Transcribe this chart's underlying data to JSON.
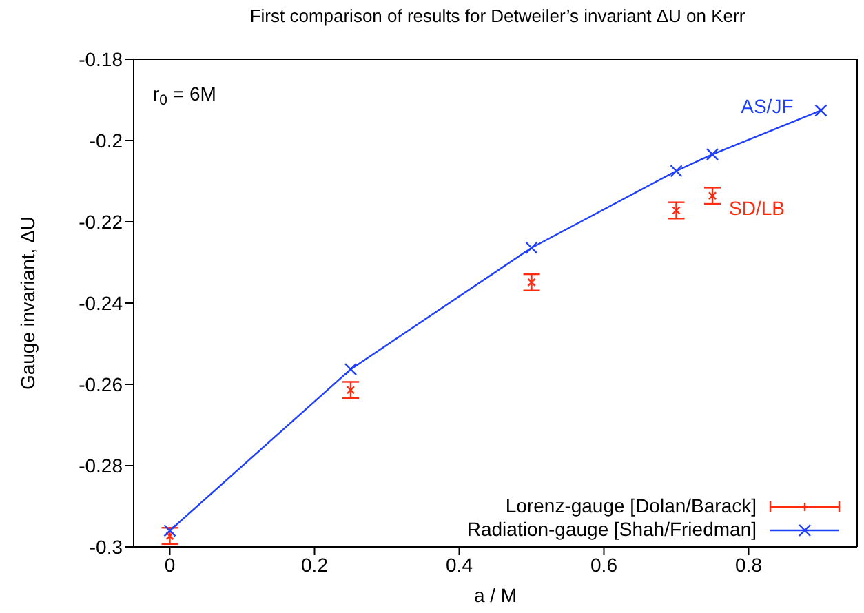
{
  "chart_data": {
    "type": "scatter",
    "title": "First comparison of results for Detweiler’s invariant ΔU on Kerr",
    "xlabel": "a / M",
    "ylabel": "Gauge invariant, ΔU",
    "series": [
      {
        "name": "Lorenz-gauge [Dolan/Barack]",
        "color": "#ff2a10",
        "marker": "cross",
        "x": [
          0,
          0.25,
          0.5,
          0.7,
          0.75
        ],
        "values": [
          -0.2973,
          -0.2614,
          -0.2349,
          -0.2172,
          -0.2136
        ],
        "errors": [
          0.002,
          0.002,
          0.002,
          0.002,
          0.002
        ]
      },
      {
        "name": "Radiation-gauge [Shah/Friedman]",
        "type": "line",
        "color": "#1f3fff",
        "marker": "cross",
        "x": [
          0,
          0.25,
          0.5,
          0.7,
          0.75,
          0.9
        ],
        "values": [
          -0.296,
          -0.2563,
          -0.2264,
          -0.2075,
          -0.2034,
          -0.1926
        ]
      }
    ],
    "annotations": [
      "r$_{0}$ = 6M",
      "AS/JF",
      "SD/LB"
    ],
    "xlim": [
      -0.05,
      0.95
    ],
    "xticks": [
      0,
      0.2,
      0.4,
      0.6,
      0.8
    ],
    "ylim": [
      -0.3,
      -0.18
    ],
    "yticks": [
      -0.3,
      -0.28,
      -0.26,
      -0.24,
      -0.22,
      -0.2,
      -0.18
    ],
    "grid": false,
    "legend": "bottom right"
  }
}
